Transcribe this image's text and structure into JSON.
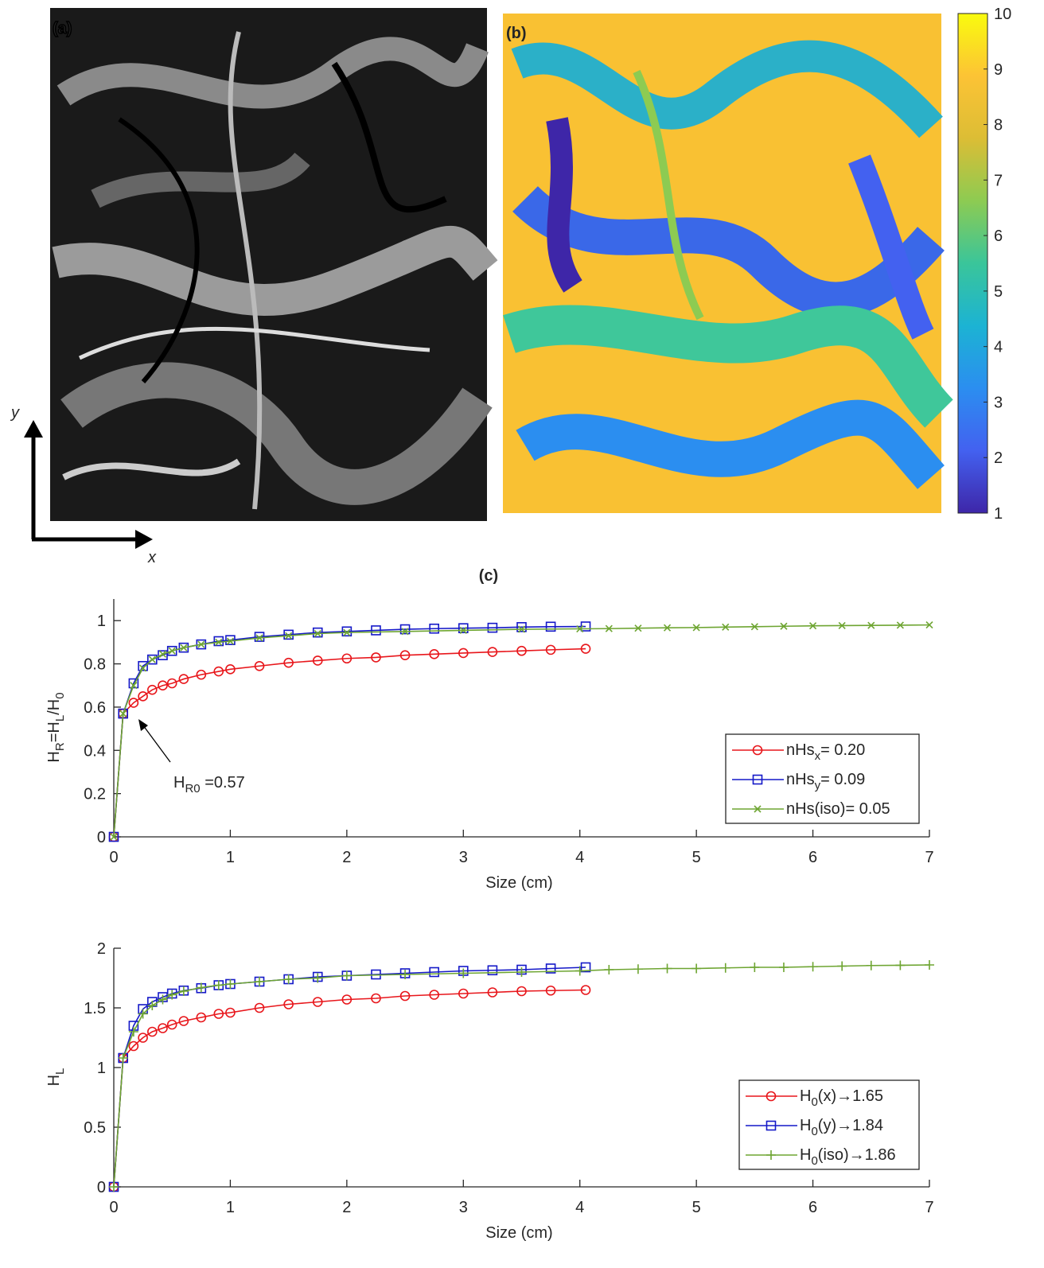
{
  "labels": {
    "a": "(a)",
    "b": "(b)",
    "c": "(c)",
    "x_arrow": "x",
    "y_arrow": "y"
  },
  "chart_data": [
    {
      "type": "colorbar",
      "ylim": [
        1,
        10
      ],
      "yticks": [
        1,
        2,
        3,
        4,
        5,
        6,
        7,
        8,
        9,
        10
      ],
      "colors": [
        "#3e26a8",
        "#4361f0",
        "#2b8ef0",
        "#1cb3d3",
        "#3ac59a",
        "#8dcb52",
        "#dcbd35",
        "#fcc335",
        "#f9fb0e"
      ]
    },
    {
      "type": "line",
      "xlabel": "Size (cm)",
      "ylabel": [
        "H",
        "R",
        "=H",
        "L",
        "/H",
        "0"
      ],
      "xlim": [
        0,
        7
      ],
      "ylim": [
        0,
        1.1
      ],
      "xticks": [
        0,
        1,
        2,
        3,
        4,
        5,
        6,
        7
      ],
      "yticks": [
        0,
        0.2,
        0.4,
        0.6,
        0.8,
        1
      ],
      "legend": "lower right",
      "annotation": [
        "H",
        "R0",
        " =0.57"
      ],
      "series": [
        {
          "name": [
            "nHs",
            "x",
            "= 0.20"
          ],
          "color": "#e8161b",
          "marker": "circle",
          "x": [
            0,
            0.08,
            0.17,
            0.25,
            0.33,
            0.42,
            0.5,
            0.6,
            0.75,
            0.9,
            1.0,
            1.25,
            1.5,
            1.75,
            2.0,
            2.25,
            2.5,
            2.75,
            3.0,
            3.25,
            3.5,
            3.75,
            4.05
          ],
          "values": [
            0,
            0.57,
            0.62,
            0.65,
            0.68,
            0.7,
            0.71,
            0.73,
            0.75,
            0.765,
            0.775,
            0.79,
            0.805,
            0.815,
            0.825,
            0.83,
            0.84,
            0.845,
            0.85,
            0.855,
            0.86,
            0.865,
            0.87
          ]
        },
        {
          "name": [
            "nHs",
            "y",
            "= 0.09"
          ],
          "color": "#1418c8",
          "marker": "square",
          "x": [
            0,
            0.08,
            0.17,
            0.25,
            0.33,
            0.42,
            0.5,
            0.6,
            0.75,
            0.9,
            1.0,
            1.25,
            1.5,
            1.75,
            2.0,
            2.25,
            2.5,
            2.75,
            3.0,
            3.25,
            3.5,
            3.75,
            4.05
          ],
          "values": [
            0,
            0.57,
            0.71,
            0.79,
            0.82,
            0.84,
            0.86,
            0.875,
            0.89,
            0.905,
            0.91,
            0.925,
            0.935,
            0.945,
            0.95,
            0.955,
            0.96,
            0.963,
            0.965,
            0.967,
            0.97,
            0.972,
            0.973
          ]
        },
        {
          "name": [
            "nHs(iso)= 0.05"
          ],
          "color": "#6ea532",
          "marker": "x",
          "x": [
            0,
            0.08,
            0.17,
            0.25,
            0.33,
            0.42,
            0.5,
            0.6,
            0.75,
            0.9,
            1.0,
            1.25,
            1.5,
            1.75,
            2.0,
            2.5,
            3.0,
            3.5,
            4.0,
            4.25,
            4.5,
            4.75,
            5.0,
            5.25,
            5.5,
            5.75,
            6.0,
            6.25,
            6.5,
            6.75,
            7.0
          ],
          "values": [
            0,
            0.57,
            0.7,
            0.78,
            0.82,
            0.845,
            0.86,
            0.875,
            0.89,
            0.9,
            0.905,
            0.92,
            0.93,
            0.94,
            0.945,
            0.95,
            0.955,
            0.96,
            0.962,
            0.963,
            0.965,
            0.967,
            0.968,
            0.97,
            0.972,
            0.974,
            0.976,
            0.977,
            0.978,
            0.979,
            0.98
          ]
        }
      ]
    },
    {
      "type": "line",
      "xlabel": "Size (cm)",
      "ylabel": [
        "H",
        "L"
      ],
      "xlim": [
        0,
        7
      ],
      "ylim": [
        0,
        2
      ],
      "xticks": [
        0,
        1,
        2,
        3,
        4,
        5,
        6,
        7
      ],
      "yticks": [
        0,
        0.5,
        1,
        1.5,
        2
      ],
      "legend": "lower right",
      "series": [
        {
          "name": [
            "H",
            "0",
            "(x)→1.65"
          ],
          "color": "#e8161b",
          "marker": "circle",
          "x": [
            0,
            0.08,
            0.17,
            0.25,
            0.33,
            0.42,
            0.5,
            0.6,
            0.75,
            0.9,
            1.0,
            1.25,
            1.5,
            1.75,
            2.0,
            2.25,
            2.5,
            2.75,
            3.0,
            3.25,
            3.5,
            3.75,
            4.05
          ],
          "values": [
            0,
            1.08,
            1.18,
            1.25,
            1.3,
            1.33,
            1.36,
            1.39,
            1.42,
            1.45,
            1.46,
            1.5,
            1.53,
            1.55,
            1.57,
            1.58,
            1.6,
            1.61,
            1.62,
            1.63,
            1.64,
            1.645,
            1.65
          ]
        },
        {
          "name": [
            "H",
            "0",
            "(y)→1.84"
          ],
          "color": "#1418c8",
          "marker": "square",
          "x": [
            0,
            0.08,
            0.17,
            0.25,
            0.33,
            0.42,
            0.5,
            0.6,
            0.75,
            0.9,
            1.0,
            1.25,
            1.5,
            1.75,
            2.0,
            2.25,
            2.5,
            2.75,
            3.0,
            3.25,
            3.5,
            3.75,
            4.05
          ],
          "values": [
            0,
            1.08,
            1.35,
            1.49,
            1.55,
            1.59,
            1.62,
            1.645,
            1.665,
            1.69,
            1.7,
            1.72,
            1.74,
            1.76,
            1.77,
            1.78,
            1.79,
            1.8,
            1.81,
            1.815,
            1.82,
            1.83,
            1.84
          ]
        },
        {
          "name": [
            "H",
            "0",
            "(iso)→1.86"
          ],
          "color": "#6ea532",
          "marker": "plus",
          "x": [
            0,
            0.08,
            0.17,
            0.25,
            0.33,
            0.42,
            0.5,
            0.6,
            0.75,
            0.9,
            1.0,
            1.25,
            1.5,
            1.75,
            2.0,
            2.5,
            3.0,
            3.5,
            4.0,
            4.25,
            4.5,
            4.75,
            5.0,
            5.25,
            5.5,
            5.75,
            6.0,
            6.25,
            6.5,
            6.75,
            7.0
          ],
          "values": [
            0,
            1.08,
            1.3,
            1.45,
            1.52,
            1.57,
            1.61,
            1.64,
            1.67,
            1.69,
            1.7,
            1.72,
            1.74,
            1.75,
            1.77,
            1.78,
            1.79,
            1.8,
            1.81,
            1.82,
            1.825,
            1.83,
            1.83,
            1.835,
            1.84,
            1.84,
            1.845,
            1.85,
            1.855,
            1.857,
            1.86
          ]
        }
      ]
    }
  ]
}
